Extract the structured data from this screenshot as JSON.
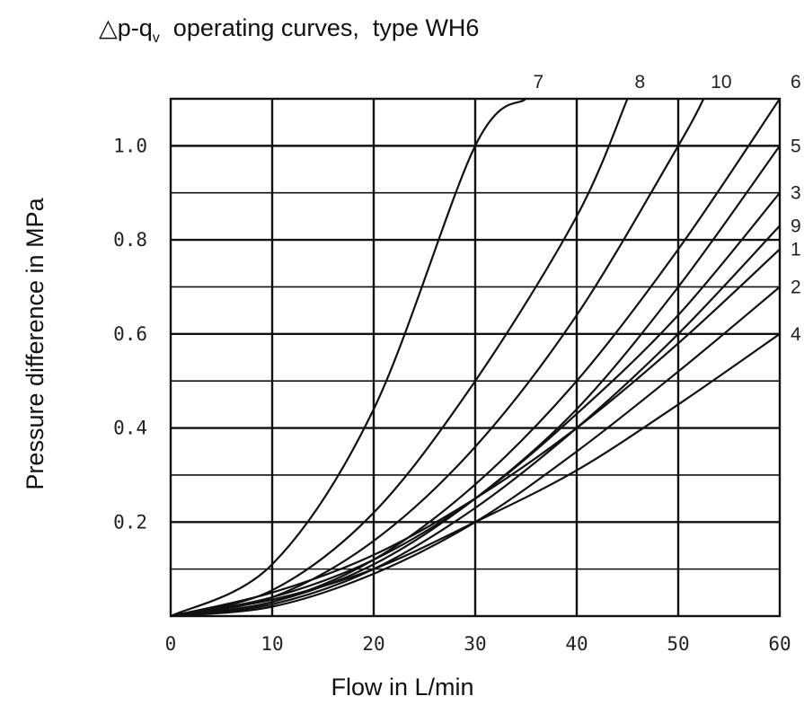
{
  "title": "△p-q",
  "title_subscript": "v",
  "title_rest": "  operating curves,  type WH6",
  "chart_data": {
    "type": "line",
    "xlabel": "Flow in L/min",
    "ylabel": "Pressure difference in MPa",
    "xlim": [
      0,
      60
    ],
    "ylim": [
      0,
      1.1
    ],
    "xticks": [
      0,
      10,
      20,
      30,
      40,
      50,
      60
    ],
    "xtick_labels": [
      "0",
      "10",
      "20",
      "30",
      "40",
      "50",
      "60"
    ],
    "yticks": [
      0.2,
      0.4,
      0.6,
      0.8,
      1.0
    ],
    "ytick_labels": [
      "0.2",
      "0.4",
      "0.6",
      "0.8",
      "1.0"
    ],
    "y_minor_grid": [
      0.1,
      0.3,
      0.5,
      0.7,
      0.9
    ],
    "grid": true,
    "series": [
      {
        "name": "7",
        "x": [
          0,
          10,
          20,
          30,
          35
        ],
        "y": [
          0,
          0.11,
          0.44,
          1.0,
          1.1
        ]
      },
      {
        "name": "8",
        "x": [
          0,
          10,
          20,
          30,
          40,
          45
        ],
        "y": [
          0,
          0.055,
          0.22,
          0.5,
          0.85,
          1.1
        ]
      },
      {
        "name": "10",
        "x": [
          0,
          10,
          20,
          30,
          40,
          50,
          52.5
        ],
        "y": [
          0,
          0.04,
          0.16,
          0.36,
          0.64,
          1.0,
          1.1
        ]
      },
      {
        "name": "6",
        "x": [
          0,
          10,
          20,
          30,
          40,
          50,
          60
        ],
        "y": [
          0,
          0.03,
          0.12,
          0.28,
          0.5,
          0.78,
          1.1
        ]
      },
      {
        "name": "5",
        "x": [
          0,
          10,
          20,
          30,
          40,
          50,
          60
        ],
        "y": [
          0,
          0.03,
          0.11,
          0.25,
          0.44,
          0.7,
          1.0
        ]
      },
      {
        "name": "3",
        "x": [
          0,
          10,
          20,
          30,
          40,
          50,
          60
        ],
        "y": [
          0,
          0.04,
          0.12,
          0.25,
          0.43,
          0.64,
          0.9
        ]
      },
      {
        "name": "9",
        "x": [
          0,
          10,
          20,
          30,
          40,
          50,
          60
        ],
        "y": [
          0,
          0.025,
          0.1,
          0.23,
          0.4,
          0.6,
          0.83
        ]
      },
      {
        "name": "1",
        "x": [
          0,
          10,
          20,
          30,
          40,
          50,
          60
        ],
        "y": [
          0,
          0.05,
          0.13,
          0.25,
          0.4,
          0.58,
          0.78
        ]
      },
      {
        "name": "2",
        "x": [
          0,
          10,
          20,
          30,
          40,
          50,
          60
        ],
        "y": [
          0,
          0.02,
          0.09,
          0.2,
          0.35,
          0.52,
          0.7
        ]
      },
      {
        "name": "4",
        "x": [
          0,
          10,
          20,
          30,
          40,
          50,
          60
        ],
        "y": [
          0,
          0.035,
          0.1,
          0.2,
          0.31,
          0.45,
          0.6
        ]
      }
    ]
  }
}
